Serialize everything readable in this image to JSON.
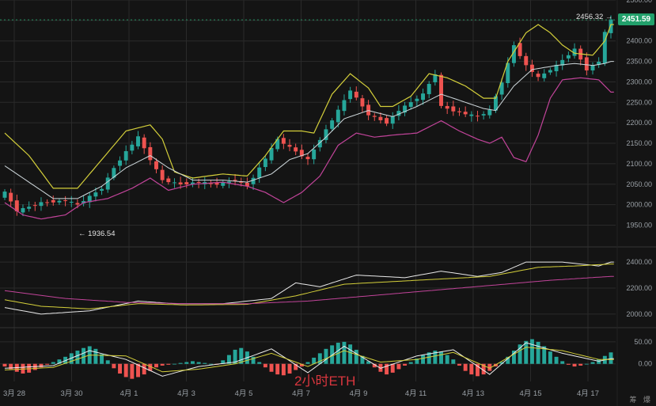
{
  "chart_data": [
    {
      "type": "candlestick",
      "title": "",
      "instrument_label": "2小时ETH",
      "x_axis": {
        "tick_labels": [
          "3月 28",
          "3月 30",
          "4月 1",
          "4月 3",
          "4月 5",
          "4月 7",
          "4月 9",
          "4月 11",
          "4月 13",
          "4月 15",
          "4月 17"
        ]
      },
      "y_axis": {
        "tick_labels": [
          "1950.00",
          "2000.00",
          "2050.00",
          "2100.00",
          "2150.00",
          "2200.00",
          "2250.00",
          "2300.00",
          "2350.00",
          "2400.00",
          "2450.00",
          "2500.00"
        ],
        "ylim": [
          1920,
          2500
        ]
      },
      "last_price": "2451.59",
      "high_marker": "2456.32",
      "low_marker": "1936.54",
      "colors": {
        "up": "#26a69a",
        "down": "#ef5350",
        "bb_upper": "#d4cf3a",
        "bb_mid": "#cfd8dc",
        "bb_lower": "#c2449a",
        "price_tag": "#22a06b"
      },
      "close_anchors": [
        [
          0,
          2030
        ],
        [
          2,
          1985
        ],
        [
          6,
          2005
        ],
        [
          10,
          2010
        ],
        [
          12,
          2000
        ],
        [
          16,
          2040
        ],
        [
          18,
          2090
        ],
        [
          20,
          2130
        ],
        [
          22,
          2165
        ],
        [
          24,
          2110
        ],
        [
          26,
          2060
        ],
        [
          29,
          2050
        ],
        [
          32,
          2055
        ],
        [
          35,
          2050
        ],
        [
          38,
          2060
        ],
        [
          40,
          2045
        ],
        [
          42,
          2090
        ],
        [
          45,
          2160
        ],
        [
          48,
          2130
        ],
        [
          50,
          2110
        ],
        [
          52,
          2160
        ],
        [
          55,
          2230
        ],
        [
          57,
          2280
        ],
        [
          60,
          2220
        ],
        [
          63,
          2200
        ],
        [
          65,
          2230
        ],
        [
          67,
          2250
        ],
        [
          69,
          2270
        ],
        [
          71,
          2320
        ],
        [
          72,
          2240
        ],
        [
          75,
          2225
        ],
        [
          78,
          2215
        ],
        [
          80,
          2230
        ],
        [
          82,
          2300
        ],
        [
          84,
          2390
        ],
        [
          86,
          2340
        ],
        [
          88,
          2310
        ],
        [
          91,
          2340
        ],
        [
          94,
          2380
        ],
        [
          96,
          2330
        ],
        [
          98,
          2350
        ],
        [
          99,
          2420
        ],
        [
          100,
          2452
        ]
      ],
      "bollinger_upper": [
        [
          0,
          2175
        ],
        [
          4,
          2120
        ],
        [
          8,
          2040
        ],
        [
          12,
          2040
        ],
        [
          16,
          2110
        ],
        [
          20,
          2180
        ],
        [
          24,
          2195
        ],
        [
          26,
          2160
        ],
        [
          28,
          2080
        ],
        [
          31,
          2065
        ],
        [
          36,
          2075
        ],
        [
          40,
          2070
        ],
        [
          43,
          2120
        ],
        [
          46,
          2180
        ],
        [
          49,
          2180
        ],
        [
          51,
          2175
        ],
        [
          54,
          2270
        ],
        [
          57,
          2320
        ],
        [
          60,
          2285
        ],
        [
          62,
          2240
        ],
        [
          64,
          2240
        ],
        [
          67,
          2265
        ],
        [
          70,
          2320
        ],
        [
          73,
          2310
        ],
        [
          76,
          2290
        ],
        [
          79,
          2260
        ],
        [
          81,
          2260
        ],
        [
          83,
          2350
        ],
        [
          86,
          2420
        ],
        [
          88,
          2440
        ],
        [
          90,
          2420
        ],
        [
          92,
          2390
        ],
        [
          94,
          2370
        ],
        [
          97,
          2365
        ],
        [
          99,
          2400
        ],
        [
          100,
          2440
        ]
      ],
      "bollinger_mid": [
        [
          0,
          2095
        ],
        [
          4,
          2055
        ],
        [
          8,
          2015
        ],
        [
          12,
          2015
        ],
        [
          16,
          2045
        ],
        [
          20,
          2090
        ],
        [
          24,
          2120
        ],
        [
          27,
          2090
        ],
        [
          31,
          2060
        ],
        [
          36,
          2060
        ],
        [
          40,
          2055
        ],
        [
          44,
          2075
        ],
        [
          47,
          2110
        ],
        [
          50,
          2125
        ],
        [
          53,
          2165
        ],
        [
          56,
          2210
        ],
        [
          60,
          2230
        ],
        [
          64,
          2215
        ],
        [
          68,
          2240
        ],
        [
          72,
          2270
        ],
        [
          76,
          2250
        ],
        [
          79,
          2235
        ],
        [
          81,
          2230
        ],
        [
          84,
          2290
        ],
        [
          87,
          2330
        ],
        [
          91,
          2340
        ],
        [
          94,
          2345
        ],
        [
          97,
          2340
        ],
        [
          99,
          2345
        ],
        [
          100,
          2350
        ]
      ],
      "bollinger_lower": [
        [
          0,
          2005
        ],
        [
          3,
          1975
        ],
        [
          6,
          1965
        ],
        [
          10,
          1975
        ],
        [
          13,
          2005
        ],
        [
          17,
          2015
        ],
        [
          21,
          2040
        ],
        [
          24,
          2065
        ],
        [
          27,
          2035
        ],
        [
          31,
          2050
        ],
        [
          36,
          2055
        ],
        [
          40,
          2045
        ],
        [
          43,
          2030
        ],
        [
          46,
          2005
        ],
        [
          49,
          2030
        ],
        [
          52,
          2070
        ],
        [
          55,
          2145
        ],
        [
          58,
          2175
        ],
        [
          61,
          2165
        ],
        [
          64,
          2170
        ],
        [
          68,
          2175
        ],
        [
          72,
          2205
        ],
        [
          75,
          2180
        ],
        [
          78,
          2160
        ],
        [
          80,
          2150
        ],
        [
          82,
          2165
        ],
        [
          84,
          2115
        ],
        [
          86,
          2105
        ],
        [
          88,
          2170
        ],
        [
          90,
          2260
        ],
        [
          92,
          2305
        ],
        [
          95,
          2310
        ],
        [
          98,
          2305
        ],
        [
          100,
          2275
        ]
      ],
      "ma_panel": {
        "tick_labels": [
          "2000.00",
          "2200.00",
          "2400.00"
        ],
        "ylim": [
          1920,
          2480
        ],
        "series": [
          {
            "color": "#e9e9e9",
            "points": [
              [
                0,
                2050
              ],
              [
                6,
                2000
              ],
              [
                14,
                2025
              ],
              [
                22,
                2100
              ],
              [
                28,
                2080
              ],
              [
                36,
                2080
              ],
              [
                44,
                2120
              ],
              [
                48,
                2240
              ],
              [
                52,
                2210
              ],
              [
                58,
                2300
              ],
              [
                66,
                2280
              ],
              [
                72,
                2330
              ],
              [
                78,
                2290
              ],
              [
                82,
                2320
              ],
              [
                86,
                2400
              ],
              [
                92,
                2400
              ],
              [
                98,
                2370
              ],
              [
                100,
                2400
              ]
            ]
          },
          {
            "color": "#d4cf3a",
            "points": [
              [
                0,
                2110
              ],
              [
                6,
                2060
              ],
              [
                14,
                2040
              ],
              [
                22,
                2080
              ],
              [
                30,
                2070
              ],
              [
                40,
                2075
              ],
              [
                48,
                2140
              ],
              [
                56,
                2230
              ],
              [
                64,
                2250
              ],
              [
                72,
                2270
              ],
              [
                80,
                2290
              ],
              [
                88,
                2360
              ],
              [
                94,
                2370
              ],
              [
                100,
                2385
              ]
            ]
          },
          {
            "color": "#c2449a",
            "points": [
              [
                0,
                2180
              ],
              [
                10,
                2120
              ],
              [
                20,
                2090
              ],
              [
                30,
                2080
              ],
              [
                40,
                2080
              ],
              [
                50,
                2100
              ],
              [
                60,
                2140
              ],
              [
                70,
                2180
              ],
              [
                80,
                2220
              ],
              [
                90,
                2260
              ],
              [
                100,
                2290
              ]
            ]
          }
        ]
      },
      "macd_panel": {
        "tick_labels": [
          "0.00",
          "50.00"
        ],
        "ylim": [
          -40,
          75
        ],
        "histogram": [
          -6,
          -12,
          -18,
          -22,
          -20,
          -14,
          -8,
          -2,
          4,
          10,
          16,
          24,
          30,
          36,
          40,
          34,
          22,
          8,
          -10,
          -22,
          -30,
          -34,
          -30,
          -24,
          -16,
          -8,
          -4,
          -2,
          0,
          2,
          4,
          6,
          4,
          2,
          0,
          -2,
          8,
          20,
          32,
          36,
          28,
          16,
          4,
          -8,
          -18,
          -24,
          -26,
          -22,
          -14,
          -6,
          4,
          14,
          24,
          34,
          42,
          48,
          50,
          44,
          32,
          18,
          6,
          -8,
          -18,
          -24,
          -20,
          -12,
          -4,
          4,
          12,
          20,
          26,
          30,
          28,
          20,
          10,
          -4,
          -16,
          -24,
          -28,
          -24,
          -16,
          -6,
          4,
          16,
          30,
          44,
          52,
          56,
          50,
          40,
          28,
          16,
          6,
          -2,
          -6,
          -4,
          0,
          4,
          10,
          18,
          26
        ],
        "macd_line": [
          [
            0,
            -10
          ],
          [
            8,
            -4
          ],
          [
            14,
            30
          ],
          [
            20,
            10
          ],
          [
            26,
            -28
          ],
          [
            32,
            -6
          ],
          [
            38,
            4
          ],
          [
            44,
            34
          ],
          [
            50,
            -20
          ],
          [
            56,
            40
          ],
          [
            62,
            -10
          ],
          [
            68,
            18
          ],
          [
            74,
            32
          ],
          [
            80,
            -24
          ],
          [
            86,
            48
          ],
          [
            92,
            24
          ],
          [
            98,
            6
          ],
          [
            100,
            12
          ]
        ],
        "signal_line": [
          [
            0,
            -14
          ],
          [
            8,
            -8
          ],
          [
            14,
            20
          ],
          [
            20,
            18
          ],
          [
            26,
            -18
          ],
          [
            32,
            -12
          ],
          [
            38,
            0
          ],
          [
            44,
            24
          ],
          [
            50,
            -6
          ],
          [
            56,
            30
          ],
          [
            62,
            4
          ],
          [
            68,
            10
          ],
          [
            74,
            26
          ],
          [
            80,
            -10
          ],
          [
            86,
            38
          ],
          [
            92,
            30
          ],
          [
            98,
            10
          ],
          [
            100,
            10
          ]
        ]
      }
    }
  ],
  "footer": {
    "corner_text": "筹 爆"
  }
}
